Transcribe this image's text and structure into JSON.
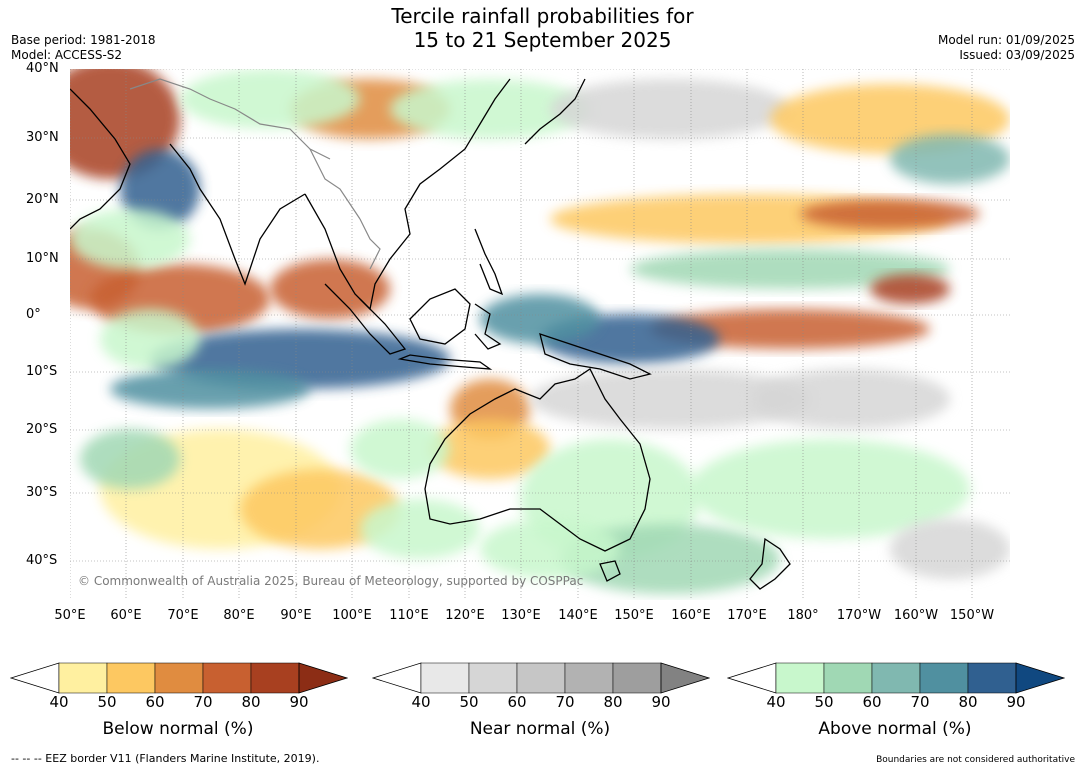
{
  "title_line1": "Tercile rainfall probabilities for",
  "title_line2": "15 to 21 September 2025",
  "base_period": "Base period: 1981-2018",
  "model": "Model: ACCESS-S2",
  "model_run": "Model run: 01/09/2025",
  "issued": "Issued: 03/09/2025",
  "copyright": "© Commonwealth of Australia 2025, Bureau of Meteorology, supported by COSPPac",
  "lat_labels": [
    "40°N",
    "30°N",
    "20°N",
    "10°N",
    "0°",
    "10°S",
    "20°S",
    "30°S",
    "40°S"
  ],
  "lon_labels": [
    "50°E",
    "60°E",
    "70°E",
    "80°E",
    "90°E",
    "100°E",
    "110°E",
    "120°E",
    "130°E",
    "140°E",
    "150°E",
    "160°E",
    "170°E",
    "180°",
    "170°W",
    "160°W",
    "150°W"
  ],
  "colorbars": [
    {
      "title": "Below normal (%)",
      "ticks": [
        "40",
        "50",
        "60",
        "70",
        "80",
        "90"
      ],
      "colors": [
        "#ffffff",
        "#fff0a0",
        "#fdc861",
        "#e08c40",
        "#c86030",
        "#a84020",
        "#8c2d15"
      ]
    },
    {
      "title": "Near normal (%)",
      "ticks": [
        "40",
        "50",
        "60",
        "70",
        "80",
        "90"
      ],
      "colors": [
        "#ffffff",
        "#e8e8e8",
        "#d6d6d6",
        "#c6c6c6",
        "#b2b2b2",
        "#9e9e9e",
        "#828282"
      ]
    },
    {
      "title": "Above normal (%)",
      "ticks": [
        "40",
        "50",
        "60",
        "70",
        "80",
        "90"
      ],
      "colors": [
        "#ffffff",
        "#c8f7cc",
        "#a0d8b4",
        "#80b8b0",
        "#5090a0",
        "#306090",
        "#104880"
      ]
    }
  ],
  "footer_left": "--  --  -- EEZ border V11 (Flanders Marine Institute, 2019).",
  "footer_right": "Boundaries are not considered authoritative"
}
